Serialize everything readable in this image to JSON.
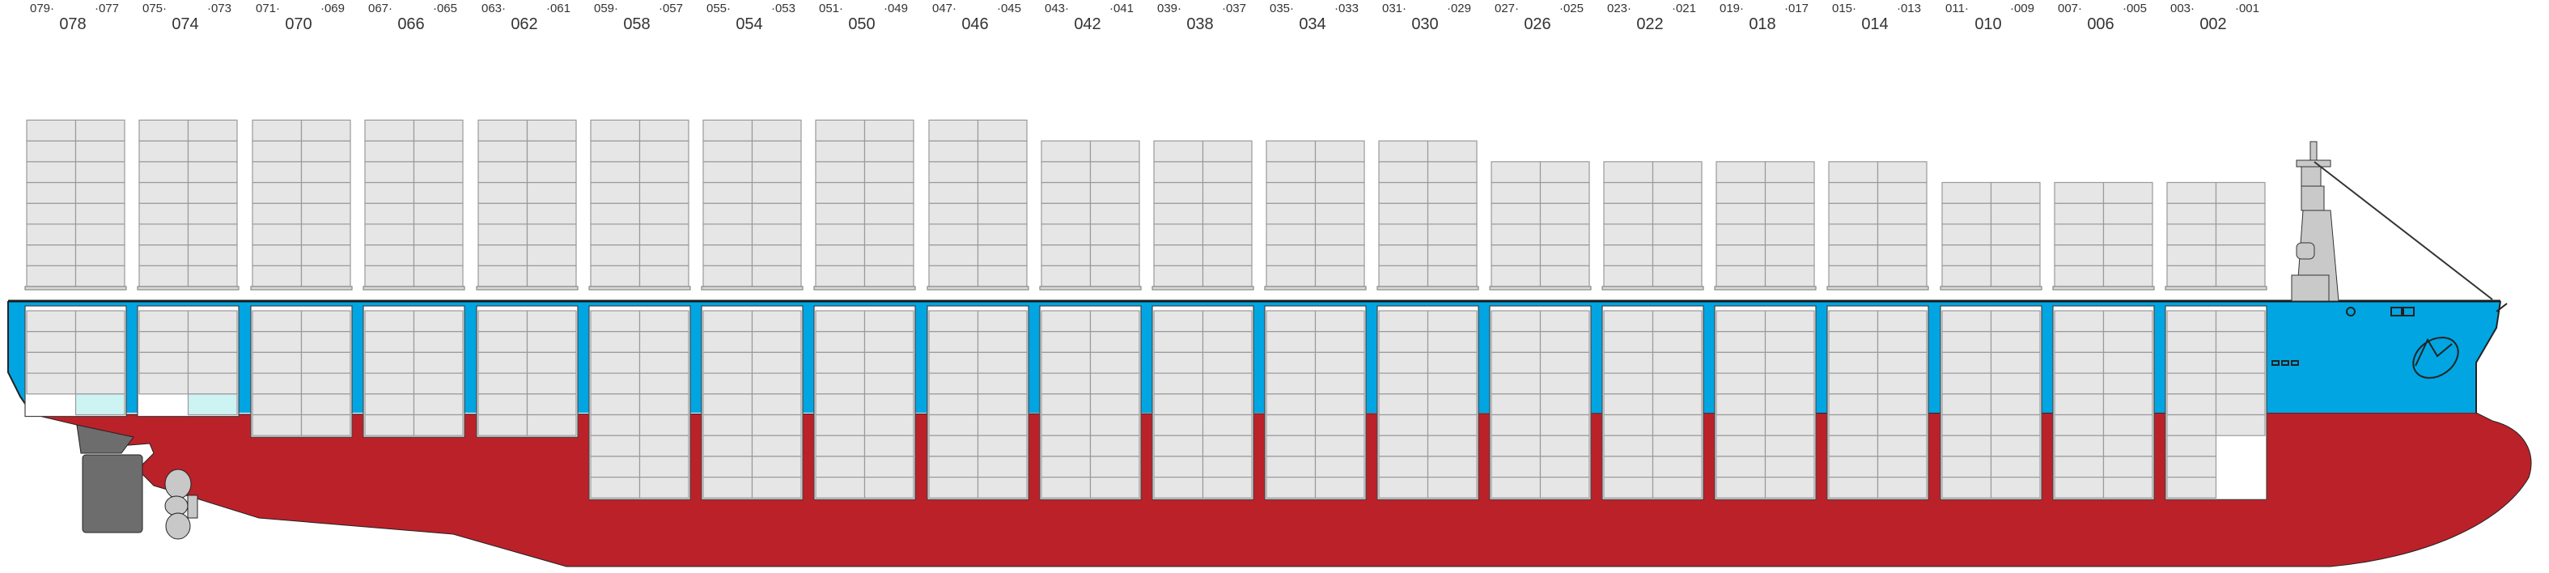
{
  "diagram": {
    "bays": [
      {
        "odd_aft": "079·",
        "odd_fwd": "·077",
        "even": "078"
      },
      {
        "odd_aft": "075·",
        "odd_fwd": "·073",
        "even": "074"
      },
      {
        "odd_aft": "071·",
        "odd_fwd": "·069",
        "even": "070"
      },
      {
        "odd_aft": "067·",
        "odd_fwd": "·065",
        "even": "066"
      },
      {
        "odd_aft": "063·",
        "odd_fwd": "·061",
        "even": "062"
      },
      {
        "odd_aft": "059·",
        "odd_fwd": "·057",
        "even": "058"
      },
      {
        "odd_aft": "055·",
        "odd_fwd": "·053",
        "even": "054"
      },
      {
        "odd_aft": "051·",
        "odd_fwd": "·049",
        "even": "050"
      },
      {
        "odd_aft": "047·",
        "odd_fwd": "·045",
        "even": "046"
      },
      {
        "odd_aft": "043·",
        "odd_fwd": "·041",
        "even": "042"
      },
      {
        "odd_aft": "039·",
        "odd_fwd": "·037",
        "even": "038"
      },
      {
        "odd_aft": "035·",
        "odd_fwd": "·033",
        "even": "034"
      },
      {
        "odd_aft": "031·",
        "odd_fwd": "·029",
        "even": "030"
      },
      {
        "odd_aft": "027·",
        "odd_fwd": "·025",
        "even": "026"
      },
      {
        "odd_aft": "023·",
        "odd_fwd": "·021",
        "even": "022"
      },
      {
        "odd_aft": "019·",
        "odd_fwd": "·017",
        "even": "018"
      },
      {
        "odd_aft": "015·",
        "odd_fwd": "·013",
        "even": "014"
      },
      {
        "odd_aft": "011·",
        "odd_fwd": "·009",
        "even": "010"
      },
      {
        "odd_aft": "007·",
        "odd_fwd": "·005",
        "even": "006"
      },
      {
        "odd_aft": "003·",
        "odd_fwd": "·001",
        "even": "002"
      }
    ],
    "colors": {
      "hull_red": "#bb2129",
      "hull_blue": "#00a5e2",
      "container_fill": "#e6e6e7",
      "container_line": "#9a9a9c",
      "reefer_cyan": "#cdf3f3",
      "rudder_gray": "#6d6d6d",
      "propeller_gray": "#c8c8c8"
    },
    "icons": [
      "rudder-icon",
      "propeller-icon",
      "bridge-superstructure-icon",
      "bow-logo-icon"
    ]
  }
}
